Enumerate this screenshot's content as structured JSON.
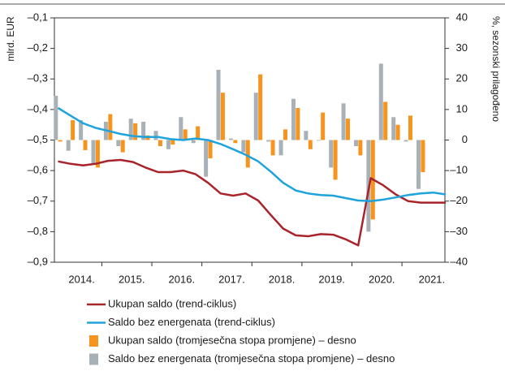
{
  "chart_data": {
    "type": "bar_line",
    "ylabel": "mlrd. EUR",
    "y2label": "%, sezonski prilagođeno",
    "categories": [
      "2014.",
      null,
      null,
      null,
      "2015.",
      null,
      null,
      null,
      "2016.",
      null,
      null,
      null,
      "2017.",
      null,
      null,
      null,
      "2018.",
      null,
      null,
      null,
      "2019.",
      null,
      null,
      null,
      "2020.",
      null,
      null,
      null,
      "2021.",
      null,
      null,
      null
    ],
    "ylim": [
      -0.9,
      -0.1
    ],
    "yticks": [
      {
        "value": -0.1,
        "label": "–0,1"
      },
      {
        "value": -0.2,
        "label": "–0,2"
      },
      {
        "value": -0.3,
        "label": "–0,3"
      },
      {
        "value": -0.4,
        "label": "–0,4"
      },
      {
        "value": -0.5,
        "label": "–0,5"
      },
      {
        "value": -0.6,
        "label": "–0,6"
      },
      {
        "value": -0.7,
        "label": "–0,7"
      },
      {
        "value": -0.8,
        "label": "–0,8"
      },
      {
        "value": -0.9,
        "label": "–0,9"
      }
    ],
    "y2lim": [
      -40,
      40
    ],
    "y2ticks": [
      40,
      30,
      20,
      10,
      0,
      {
        "value": -10,
        "label": "–10"
      },
      {
        "value": -20,
        "label": "–20"
      },
      {
        "value": -30,
        "label": "–30"
      },
      {
        "value": -40,
        "label": "–40"
      }
    ],
    "series": [
      {
        "name": "Ukupan saldo (trend-ciklus)",
        "kind": "line",
        "color": "#a8232a",
        "values": [
          -0.57,
          -0.578,
          -0.583,
          -0.578,
          -0.568,
          -0.565,
          -0.572,
          -0.59,
          -0.605,
          -0.605,
          -0.6,
          -0.612,
          -0.64,
          -0.675,
          -0.682,
          -0.675,
          -0.698,
          -0.745,
          -0.79,
          -0.812,
          -0.815,
          -0.808,
          -0.81,
          -0.825,
          -0.845,
          -0.625,
          -0.648,
          -0.678,
          -0.7,
          -0.705,
          -0.705,
          -0.705
        ]
      },
      {
        "name": "Saldo bez energenata (trend-ciklus)",
        "kind": "line",
        "color": "#1ea3dc",
        "values": [
          -0.395,
          -0.42,
          -0.445,
          -0.46,
          -0.47,
          -0.48,
          -0.487,
          -0.49,
          -0.49,
          -0.497,
          -0.5,
          -0.495,
          -0.5,
          -0.513,
          -0.53,
          -0.548,
          -0.57,
          -0.603,
          -0.64,
          -0.665,
          -0.675,
          -0.68,
          -0.682,
          -0.69,
          -0.698,
          -0.7,
          -0.695,
          -0.688,
          -0.68,
          -0.675,
          -0.672,
          -0.678
        ]
      },
      {
        "name": "Ukupan saldo (tromjesečna stopa promjene) – desno",
        "kind": "bar",
        "axis": "y2",
        "color": "#f7941d",
        "values": [
          -0.5,
          6.5,
          -3.3,
          -9,
          8.5,
          -4,
          5.5,
          1.5,
          -2,
          -1.5,
          3.5,
          4.5,
          -6,
          15.5,
          -1,
          -9,
          21.5,
          -5,
          3.5,
          10.5,
          -3,
          9,
          -13,
          7,
          -5,
          -26,
          12.5,
          5,
          8,
          -10.5,
          null,
          null
        ]
      },
      {
        "name": "Saldo bez energenata (tromjesečna stopa promjene) – desno",
        "kind": "bar",
        "axis": "y2",
        "color": "#a7b1b7",
        "values": [
          14.5,
          -3.5,
          6.5,
          -8,
          6,
          -2,
          7,
          6,
          3,
          -3,
          7.5,
          -1,
          -12,
          23,
          0.5,
          -4,
          15.5,
          -0.5,
          -5,
          13.5,
          3,
          0,
          -9,
          12,
          -2,
          -30,
          25,
          7.5,
          -0.5,
          -16,
          null,
          null
        ]
      }
    ]
  }
}
